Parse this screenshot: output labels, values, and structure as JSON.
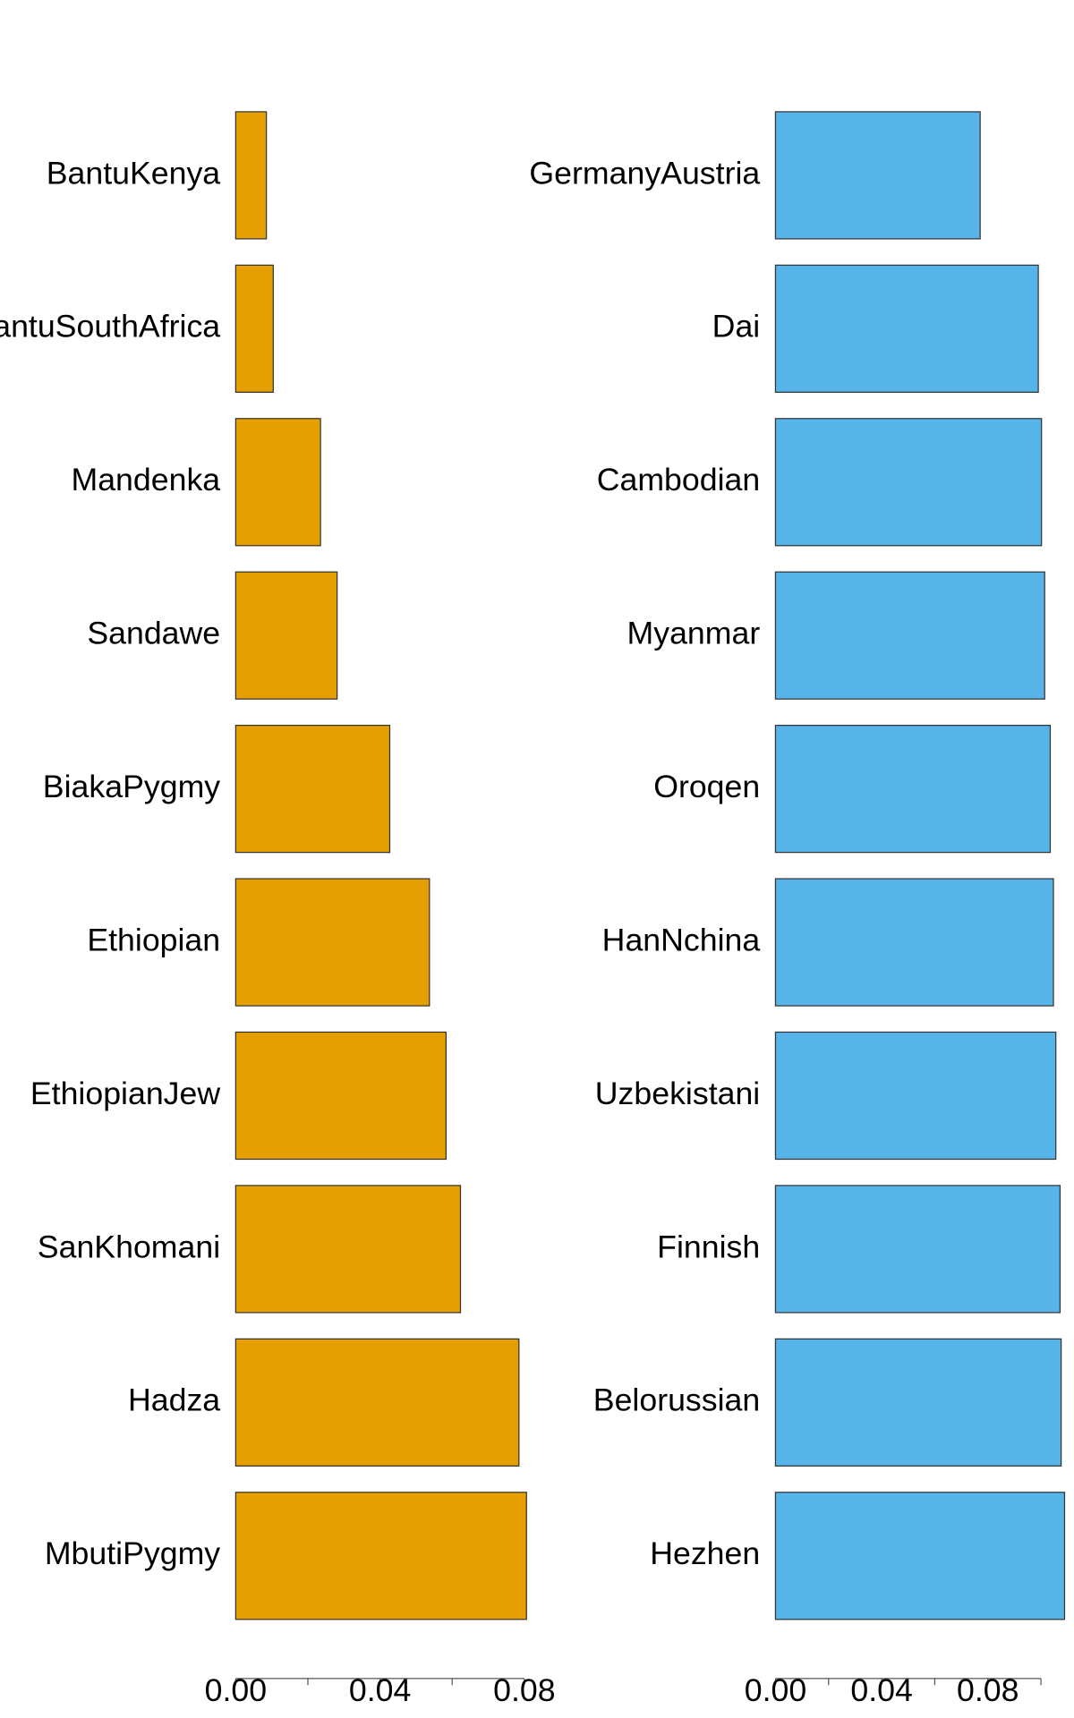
{
  "chart_data": [
    {
      "type": "bar",
      "orientation": "horizontal",
      "categories": [
        "BantuKenya",
        "BantuSouthAfrica",
        "Mandenka",
        "Sandawe",
        "BiakaPygmy",
        "Ethiopian",
        "EthiopianJew",
        "SanKhomani",
        "Hadza",
        "MbutiPygmy"
      ],
      "values": [
        0.0085,
        0.0104,
        0.0235,
        0.0281,
        0.0427,
        0.0537,
        0.0583,
        0.0623,
        0.0785,
        0.0806
      ],
      "color": "#e69f00",
      "xlim": [
        0,
        0.08
      ],
      "xticks": [
        {
          "value": 0,
          "label": "0.00"
        },
        {
          "value": 0.04,
          "label": "0.04"
        },
        {
          "value": 0.08,
          "label": "0.08"
        }
      ],
      "xminor_ticks": [
        0.02,
        0.06
      ]
    },
    {
      "type": "bar",
      "orientation": "horizontal",
      "categories": [
        "GermanyAustria",
        "Dai",
        "Cambodian",
        "Myanmar",
        "Oroqen",
        "HanNchina",
        "Uzbekistani",
        "Finnish",
        "Belorussian",
        "Hezhen"
      ],
      "values": [
        0.0771,
        0.099,
        0.1002,
        0.1014,
        0.1035,
        0.1047,
        0.1056,
        0.1072,
        0.1076,
        0.1089
      ],
      "color": "#56b4e9",
      "xlim": [
        0,
        0.1
      ],
      "xticks": [
        {
          "value": 0,
          "label": "0.00"
        },
        {
          "value": 0.04,
          "label": "0.04"
        },
        {
          "value": 0.08,
          "label": "0.08"
        }
      ],
      "xminor_ticks": [
        0.02,
        0.06,
        0.1
      ]
    }
  ]
}
